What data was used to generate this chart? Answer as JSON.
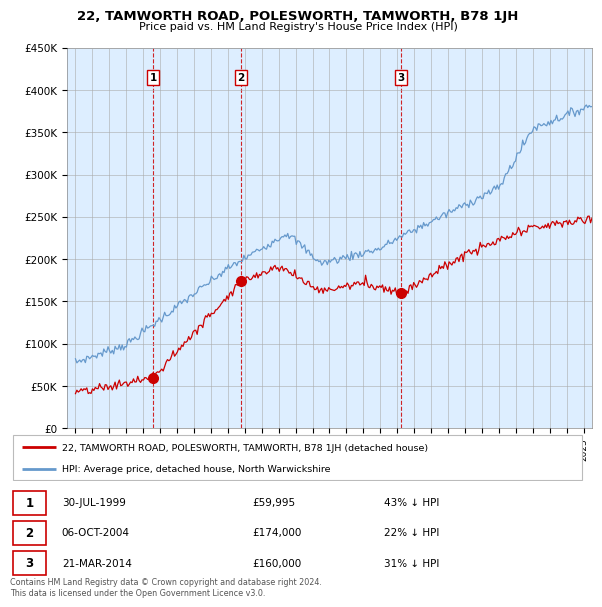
{
  "title": "22, TAMWORTH ROAD, POLESWORTH, TAMWORTH, B78 1JH",
  "subtitle": "Price paid vs. HM Land Registry's House Price Index (HPI)",
  "legend_property": "22, TAMWORTH ROAD, POLESWORTH, TAMWORTH, B78 1JH (detached house)",
  "legend_hpi": "HPI: Average price, detached house, North Warwickshire",
  "footer": "Contains HM Land Registry data © Crown copyright and database right 2024.\nThis data is licensed under the Open Government Licence v3.0.",
  "sales": [
    {
      "label": "1",
      "date": "30-JUL-1999",
      "price": 59995,
      "year": 1999.58
    },
    {
      "label": "2",
      "date": "06-OCT-2004",
      "price": 174000,
      "year": 2004.77
    },
    {
      "label": "3",
      "date": "21-MAR-2014",
      "price": 160000,
      "year": 2014.22
    }
  ],
  "sale_annotations": [
    {
      "num": "1",
      "info": "30-JUL-1999",
      "price": "£59,995",
      "pct": "43% ↓ HPI"
    },
    {
      "num": "2",
      "info": "06-OCT-2004",
      "price": "£174,000",
      "pct": "22% ↓ HPI"
    },
    {
      "num": "3",
      "info": "21-MAR-2014",
      "price": "£160,000",
      "pct": "31% ↓ HPI"
    }
  ],
  "ylim": [
    0,
    450000
  ],
  "yticks": [
    0,
    50000,
    100000,
    150000,
    200000,
    250000,
    300000,
    350000,
    400000,
    450000
  ],
  "ytick_labels": [
    "£0",
    "£50K",
    "£100K",
    "£150K",
    "£200K",
    "£250K",
    "£300K",
    "£350K",
    "£400K",
    "£450K"
  ],
  "xlim_start": 1994.5,
  "xlim_end": 2025.5,
  "property_color": "#cc0000",
  "hpi_color": "#6699cc",
  "chart_bg": "#ddeeff",
  "vline_color": "#cc0000",
  "background_color": "#ffffff",
  "grid_color": "#aaaaaa"
}
